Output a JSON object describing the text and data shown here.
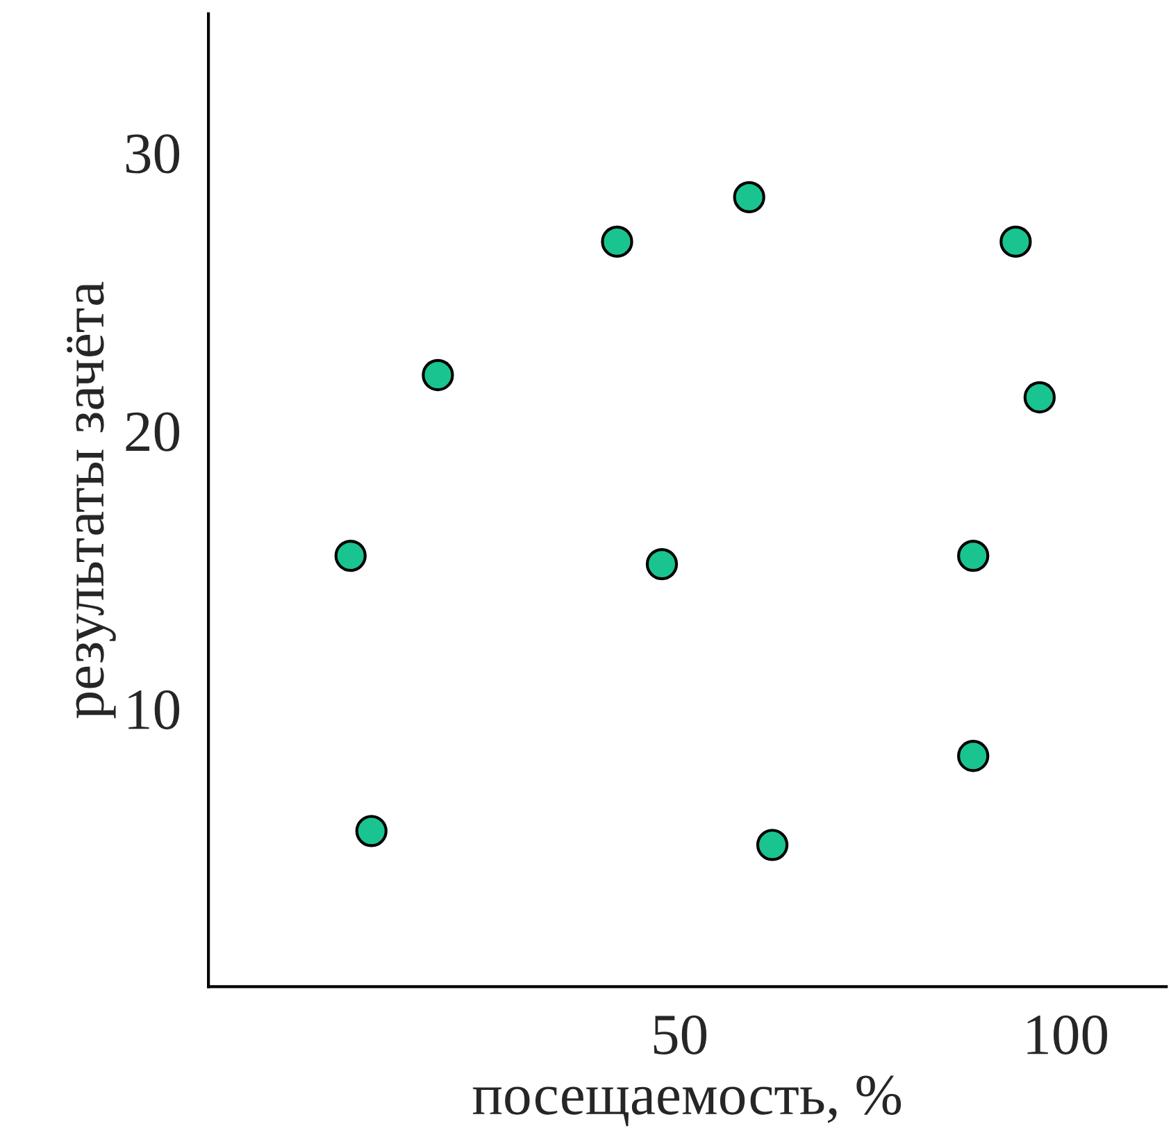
{
  "chart_data": {
    "type": "scatter",
    "xlabel": "посещаемость, %",
    "ylabel": "результаты зачёта",
    "x": [
      7.4,
      10.1,
      18.7,
      41.9,
      47.7,
      59,
      62,
      88,
      88,
      93.5,
      96.6
    ],
    "series": [
      {
        "color": "#19c490",
        "values": [
          15.5,
          5.6,
          22,
          26.8,
          15.2,
          28.4,
          5.1,
          15.5,
          8.3,
          26.8,
          21.2
        ]
      }
    ],
    "xlim": [
      -11,
      113
    ],
    "ylim": [
      0,
      35
    ],
    "xticks": [
      50,
      100
    ],
    "yticks": [
      10,
      20,
      30
    ],
    "grid": false,
    "legend": false,
    "marker": "circle"
  }
}
